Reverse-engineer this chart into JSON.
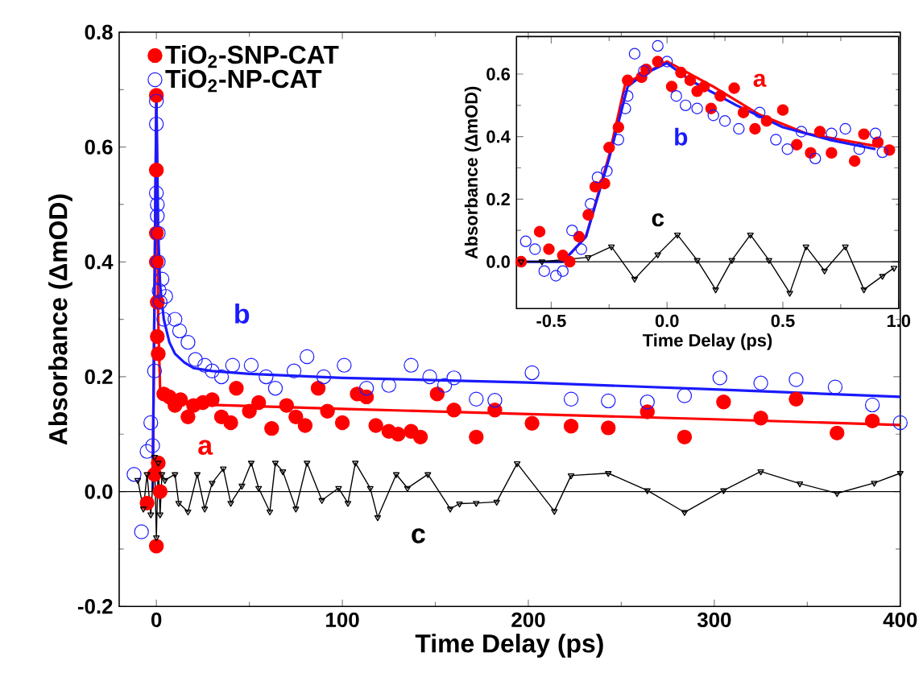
{
  "chart_data": [
    {
      "type": "scatter",
      "xlabel": "Time Delay (ps)",
      "ylabel": "Absorbance (ΔmOD)",
      "xlim": [
        -20,
        400
      ],
      "ylim": [
        -0.2,
        0.8
      ],
      "xticks": [
        0,
        100,
        200,
        300,
        400
      ],
      "yticks": [
        -0.2,
        {
          "value": 0,
          "label": "0.0"
        },
        0.2,
        0.4,
        0.6,
        0.8
      ],
      "legend": "top left",
      "series": [
        {
          "name": "TiO$_{2}$-SNP-CAT",
          "marker": "circle",
          "color": "#ff0000",
          "x": [
            -5,
            -1,
            0,
            0,
            0,
            0,
            0.5,
            0.5,
            1,
            0,
            1,
            2,
            4,
            7,
            10,
            13,
            17,
            20,
            25,
            30,
            35,
            40,
            43,
            50,
            55,
            62,
            70,
            75,
            80,
            87,
            92,
            100,
            108,
            113,
            118,
            125,
            130,
            137,
            142,
            151,
            160,
            172,
            182,
            202,
            223,
            243,
            264,
            284,
            305,
            325,
            344,
            366,
            385
          ],
          "values": [
            -0.02,
            0.03,
            0.69,
            0.56,
            0.45,
            0.4,
            0.33,
            0.27,
            0.24,
            -0.095,
            0.05,
            0.0,
            0.17,
            0.165,
            0.15,
            0.16,
            0.13,
            0.15,
            0.155,
            0.16,
            0.13,
            0.12,
            0.18,
            0.14,
            0.155,
            0.11,
            0.15,
            0.13,
            0.115,
            0.18,
            0.14,
            0.12,
            0.17,
            0.165,
            0.115,
            0.105,
            0.1,
            0.105,
            0.095,
            0.17,
            0.142,
            0.095,
            0.142,
            0.119,
            0.114,
            0.111,
            0.139,
            0.095,
            0.156,
            0.128,
            0.161,
            0.102,
            0.123
          ]
        },
        {
          "name": "TiO$_{2}$-NP-CAT",
          "marker": "open circle",
          "color": "#1a1aff",
          "x": [
            -12,
            -8,
            -5,
            -3,
            -2,
            -1,
            0,
            0,
            0,
            0.5,
            0.5,
            1,
            1,
            1.5,
            2,
            3,
            4,
            5,
            10,
            12.5,
            17,
            21,
            26,
            30,
            35,
            41,
            51,
            59,
            64,
            74,
            81,
            90,
            101,
            113,
            125,
            137,
            147,
            155,
            160,
            172,
            182,
            202,
            223,
            243,
            264,
            284,
            303,
            325,
            344,
            365,
            385,
            400
          ],
          "values": [
            0.03,
            -0.07,
            0.07,
            0.12,
            0.08,
            0.21,
            0.68,
            0.64,
            0.52,
            0.5,
            0.48,
            0.45,
            0.4,
            0.35,
            0.33,
            0.37,
            0.3,
            0.34,
            0.3,
            0.28,
            0.26,
            0.23,
            0.22,
            0.21,
            0.2,
            0.22,
            0.22,
            0.2,
            0.18,
            0.21,
            0.235,
            0.2,
            0.22,
            0.18,
            0.185,
            0.22,
            0.2,
            0.185,
            0.198,
            0.161,
            0.159,
            0.207,
            0.161,
            0.158,
            0.156,
            0.167,
            0.198,
            0.189,
            0.195,
            0.182,
            0.151,
            0.12
          ]
        },
        {
          "type": "line",
          "color": "#ff0000",
          "x": [
            -2,
            0,
            1,
            2,
            5,
            20,
            100,
            200,
            300,
            400
          ],
          "values": [
            0.0,
            0.69,
            0.3,
            0.18,
            0.16,
            0.152,
            0.144,
            0.135,
            0.126,
            0.116
          ]
        },
        {
          "type": "line",
          "color": "#1a1aff",
          "x": [
            -2,
            0,
            1,
            2,
            4,
            7,
            10,
            15,
            20,
            30,
            50,
            100,
            200,
            300,
            400
          ],
          "values": [
            0.0,
            0.69,
            0.45,
            0.36,
            0.3,
            0.26,
            0.24,
            0.225,
            0.215,
            0.21,
            0.205,
            0.198,
            0.19,
            0.178,
            0.165
          ]
        },
        {
          "type": "line",
          "marker": "triangle",
          "color": "#000000",
          "x": [
            -10,
            -7,
            -5,
            -3,
            -1,
            0,
            1,
            2,
            3,
            4.6,
            10,
            12,
            17,
            22,
            26,
            30,
            36,
            40,
            46,
            51,
            55,
            61,
            64,
            68,
            75,
            81,
            89,
            98,
            103,
            107,
            115,
            119,
            129,
            135,
            146,
            158,
            163,
            172,
            183,
            194,
            214,
            223,
            243,
            264,
            284,
            305,
            325,
            346,
            366,
            386,
            400
          ],
          "values": [
            0.02,
            -0.03,
            0.03,
            -0.04,
            0.06,
            -0.08,
            0.05,
            -0.04,
            0.03,
            0.02,
            0.03,
            -0.02,
            -0.035,
            0.03,
            -0.03,
            0.015,
            0.04,
            -0.02,
            0.01,
            0.05,
            0.006,
            -0.035,
            0.05,
            0.035,
            -0.03,
            0.05,
            -0.015,
            0.006,
            -0.02,
            0.05,
            0.006,
            -0.045,
            0.03,
            0.006,
            0.03,
            -0.03,
            -0.021,
            -0.02,
            -0.018,
            0.049,
            -0.034,
            0.028,
            0.032,
            0.002,
            -0.036,
            0.002,
            0.035,
            0.014,
            -0.003,
            0.015,
            0.032
          ]
        }
      ],
      "ref_lines": [
        {
          "axis": "y",
          "value": 0,
          "color": "#000000"
        }
      ],
      "annotations": [
        "a",
        "b",
        "c"
      ]
    },
    {
      "type": "scatter",
      "xlabel": "Time Delay (ps)",
      "ylabel": "Absorbance (ΔmOD)",
      "xlim": [
        -0.65,
        1.0
      ],
      "ylim": [
        -0.15,
        0.72
      ],
      "xticks": [
        -0.5,
        {
          "value": 0,
          "label": "0.0"
        },
        0.5,
        {
          "value": 1,
          "label": "1.0"
        }
      ],
      "yticks": [
        {
          "value": 0,
          "label": "0.0"
        },
        0.2,
        0.4,
        0.6
      ],
      "series": [
        {
          "marker": "circle",
          "color": "#ff0000",
          "x": [
            -0.63,
            -0.55,
            -0.51,
            -0.45,
            -0.42,
            -0.38,
            -0.34,
            -0.31,
            -0.27,
            -0.25,
            -0.21,
            -0.17,
            -0.11,
            -0.09,
            -0.04,
            0.02,
            0.06,
            0.1,
            0.13,
            0.16,
            0.19,
            0.23,
            0.29,
            0.33,
            0.38,
            0.43,
            0.5,
            0.56,
            0.62,
            0.66,
            0.71,
            0.81,
            0.85,
            0.91,
            0.96
          ],
          "values": [
            0.0,
            0.096,
            0.04,
            0.02,
            0.0,
            0.08,
            0.15,
            0.24,
            0.25,
            0.365,
            0.43,
            0.58,
            0.59,
            0.615,
            0.64,
            0.56,
            0.605,
            0.58,
            0.545,
            0.56,
            0.49,
            0.53,
            0.555,
            0.477,
            0.425,
            0.45,
            0.485,
            0.374,
            0.348,
            0.416,
            0.348,
            0.322,
            0.408,
            0.382,
            0.357
          ]
        },
        {
          "marker": "open circle",
          "color": "#1a1aff",
          "x": [
            -0.61,
            -0.57,
            -0.53,
            -0.48,
            -0.45,
            -0.41,
            -0.37,
            -0.33,
            -0.3,
            -0.26,
            -0.21,
            -0.18,
            -0.17,
            -0.14,
            -0.1,
            -0.04,
            0.0,
            0.04,
            0.08,
            0.13,
            0.2,
            0.25,
            0.31,
            0.4,
            0.47,
            0.52,
            0.58,
            0.64,
            0.71,
            0.77,
            0.83,
            0.9,
            0.93
          ],
          "values": [
            0.065,
            0.04,
            -0.03,
            -0.045,
            -0.03,
            0.1,
            0.04,
            0.185,
            0.27,
            0.29,
            0.39,
            0.49,
            0.53,
            0.665,
            0.61,
            0.69,
            0.64,
            0.53,
            0.5,
            0.49,
            0.468,
            0.45,
            0.425,
            0.477,
            0.39,
            0.36,
            0.416,
            0.33,
            0.41,
            0.425,
            0.36,
            0.41,
            0.35
          ]
        },
        {
          "type": "line",
          "color": "#ff0000",
          "x": [
            -0.45,
            -0.35,
            -0.25,
            -0.18,
            -0.1,
            0.0,
            0.2,
            0.4,
            0.6,
            0.9
          ],
          "values": [
            0.0,
            0.08,
            0.34,
            0.57,
            0.6,
            0.64,
            0.56,
            0.47,
            0.41,
            0.37
          ]
        },
        {
          "type": "line",
          "color": "#1a1aff",
          "x": [
            -0.65,
            -0.45,
            -0.35,
            -0.25,
            -0.17,
            -0.1,
            0.0,
            0.1,
            0.3,
            0.5,
            0.7,
            0.9
          ],
          "values": [
            0.0,
            0.0,
            0.08,
            0.33,
            0.56,
            0.6,
            0.635,
            0.58,
            0.5,
            0.43,
            0.39,
            0.36
          ]
        },
        {
          "type": "line",
          "marker": "triangle",
          "color": "#000000",
          "x": [
            -0.63,
            -0.54,
            -0.34,
            -0.24,
            -0.14,
            -0.04,
            0.045,
            0.13,
            0.21,
            0.28,
            0.36,
            0.44,
            0.53,
            0.6,
            0.68,
            0.77,
            0.85,
            0.93,
            0.98
          ],
          "values": [
            0.0,
            0.0,
            0.014,
            0.048,
            -0.055,
            0.023,
            0.086,
            0.005,
            -0.089,
            0.005,
            0.086,
            0.005,
            -0.1,
            0.048,
            -0.029,
            0.048,
            -0.089,
            -0.046,
            -0.02
          ]
        }
      ],
      "ref_lines": [
        {
          "axis": "y",
          "value": 0,
          "color": "#000000"
        }
      ],
      "annotations": [
        "a",
        "b",
        "c"
      ]
    }
  ]
}
